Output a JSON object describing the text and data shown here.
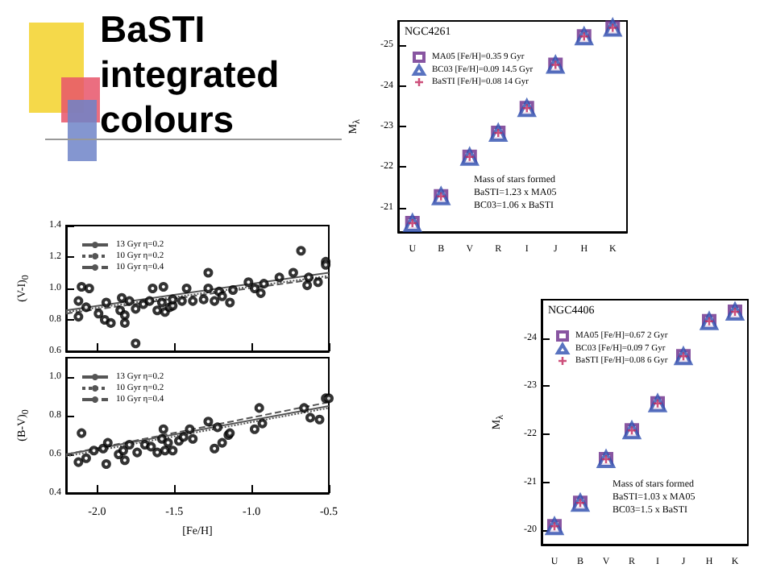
{
  "chart_data": [
    {
      "type": "other",
      "title": "BaSTI integrated colours"
    },
    {
      "type": "scatter",
      "ylabel": "(V-I)$_{0}$",
      "xlim": [
        -2.2,
        -0.5
      ],
      "xticks": [
        -2,
        -1.5,
        -1,
        -0.5
      ],
      "ylim": [
        0.6,
        1.4
      ],
      "yticks": [
        {
          "value": 0.6,
          "label": "0.6"
        },
        {
          "value": 0.8,
          "label": "0.8"
        },
        {
          "value": 1,
          "label": "1.0"
        },
        {
          "value": 1.2,
          "label": "1.2"
        },
        {
          "value": 1.4,
          "label": "1.4"
        }
      ],
      "tick_labels": "y",
      "legend": "top left",
      "series": [
        {
          "type": "scatter",
          "color": "#000000",
          "marker": "circle",
          "x": [
            -2.12,
            -2.12,
            -2.1,
            -2.05,
            -2.07,
            -1.99,
            -1.95,
            -1.91,
            -1.94,
            -1.85,
            -1.84,
            -1.82,
            -1.82,
            -1.79,
            -1.75,
            -1.75,
            -1.7,
            -1.66,
            -1.64,
            -1.61,
            -1.58,
            -1.57,
            -1.56,
            -1.53,
            -1.51,
            -1.51,
            -1.45,
            -1.42,
            -1.38,
            -1.31,
            -1.28,
            -1.28,
            -1.24,
            -1.21,
            -1.19,
            -1.14,
            -1.12,
            -1.02,
            -0.98,
            -0.94,
            -0.92,
            -0.82,
            -0.73,
            -0.68,
            -0.64,
            -0.57,
            -0.52,
            -0.52,
            -0.63
          ],
          "values": [
            0.82,
            0.92,
            1.01,
            1.0,
            0.88,
            0.84,
            0.8,
            0.78,
            0.91,
            0.86,
            0.94,
            0.83,
            0.78,
            0.92,
            0.65,
            0.87,
            0.9,
            0.92,
            1.0,
            0.86,
            0.91,
            1.01,
            0.85,
            0.88,
            0.89,
            0.93,
            0.92,
            1.0,
            0.92,
            0.93,
            1.1,
            1.0,
            0.92,
            0.98,
            0.95,
            0.91,
            0.99,
            1.04,
            1.0,
            0.97,
            1.03,
            1.07,
            1.1,
            1.24,
            1.02,
            1.04,
            1.17,
            1.15,
            1.07
          ]
        },
        {
          "type": "line",
          "name": "13 Gyr η=0.2",
          "color": "#555555",
          "line_style": "solid",
          "x": [
            -2.2,
            -0.5
          ],
          "values": [
            0.86,
            1.1
          ]
        },
        {
          "type": "line",
          "name": "10 Gyr η=0.2",
          "color": "#555555",
          "line_style": "dotted",
          "x": [
            -2.2,
            -0.5
          ],
          "values": [
            0.85,
            1.08
          ]
        },
        {
          "type": "line",
          "name": "10 Gyr η=0.4",
          "color": "#555555",
          "line_style": "dashed",
          "x": [
            -2.2,
            -0.5
          ],
          "values": [
            0.84,
            1.07
          ]
        }
      ]
    },
    {
      "type": "scatter",
      "xlabel": "[Fe/H]",
      "ylabel": "(B-V)$_{0}$",
      "xlim": [
        -2.2,
        -0.5
      ],
      "xticks": [
        {
          "value": -2,
          "label": "-2.0"
        },
        {
          "value": -1.5,
          "label": "-1.5"
        },
        {
          "value": -1,
          "label": "-1.0"
        },
        {
          "value": -0.5,
          "label": "-0.5"
        }
      ],
      "ylim": [
        0.4,
        1.1
      ],
      "yticks": [
        {
          "value": 0.4,
          "label": "0.4"
        },
        {
          "value": 0.6,
          "label": "0.6"
        },
        {
          "value": 0.8,
          "label": "0.8"
        },
        {
          "value": 1,
          "label": "1.0"
        }
      ],
      "legend": "top left",
      "series": [
        {
          "type": "scatter",
          "color": "#000000",
          "marker": "circle",
          "x": [
            -2.12,
            -2.1,
            -2.07,
            -2.02,
            -1.96,
            -1.94,
            -1.93,
            -1.86,
            -1.83,
            -1.82,
            -1.79,
            -1.74,
            -1.69,
            -1.65,
            -1.61,
            -1.58,
            -1.57,
            -1.56,
            -1.54,
            -1.51,
            -1.47,
            -1.44,
            -1.4,
            -1.38,
            -1.28,
            -1.24,
            -1.22,
            -1.19,
            -1.15,
            -1.14,
            -0.98,
            -0.95,
            -0.93,
            -0.66,
            -0.62,
            -0.56,
            -0.52,
            -0.5
          ],
          "values": [
            0.56,
            0.71,
            0.58,
            0.62,
            0.63,
            0.55,
            0.66,
            0.6,
            0.62,
            0.57,
            0.65,
            0.61,
            0.65,
            0.64,
            0.61,
            0.68,
            0.73,
            0.62,
            0.66,
            0.62,
            0.67,
            0.69,
            0.73,
            0.68,
            0.77,
            0.63,
            0.74,
            0.66,
            0.7,
            0.71,
            0.73,
            0.84,
            0.76,
            0.84,
            0.79,
            0.78,
            0.89,
            0.89
          ]
        },
        {
          "type": "line",
          "name": "13 Gyr η=0.2",
          "color": "#555555",
          "line_style": "solid",
          "x": [
            -2.2,
            -0.5
          ],
          "values": [
            0.6,
            0.85
          ]
        },
        {
          "type": "line",
          "name": "10 Gyr η=0.2",
          "color": "#555555",
          "line_style": "dotted",
          "x": [
            -2.2,
            -0.5
          ],
          "values": [
            0.59,
            0.84
          ]
        },
        {
          "type": "line",
          "name": "10 Gyr η=0.4",
          "color": "#555555",
          "line_style": "dashed",
          "x": [
            -2.2,
            -0.5
          ],
          "values": [
            0.6,
            0.87
          ]
        }
      ]
    },
    {
      "type": "scatter",
      "title": "NGC4261",
      "ylabel": "M$_{λ}$",
      "categories": [
        "U",
        "B",
        "V",
        "R",
        "I",
        "J",
        "H",
        "K"
      ],
      "ylim": [
        -20.4,
        -25.6
      ],
      "yticks": [
        -21,
        -22,
        -23,
        -24,
        -25
      ],
      "legend": "top left",
      "annotations": [
        "Mass of stars formed",
        "BaSTI=1.23 x MA05",
        "BC03=1.06 x BaSTI"
      ],
      "series": [
        {
          "name": "MA05 [Fe/H]=0.35 9 Gyr",
          "color": "#6a2a8a",
          "marker": "square",
          "values": [
            -20.62,
            -21.28,
            -22.25,
            -22.84,
            -23.45,
            -24.52,
            -25.22,
            -25.43
          ]
        },
        {
          "name": "BC03 [Fe/H]=0.09 14.5 Gyr",
          "color": "#3050b0",
          "marker": "triangle",
          "values": [
            -20.62,
            -21.28,
            -22.25,
            -22.84,
            -23.45,
            -24.52,
            -25.22,
            -25.43
          ]
        },
        {
          "name": "BaSTI [Fe/H]=0.08 14 Gyr",
          "color": "#c0245a",
          "marker": "cross",
          "values": [
            -20.62,
            -21.28,
            -22.25,
            -22.84,
            -23.45,
            -24.52,
            -25.22,
            -25.43
          ]
        }
      ]
    },
    {
      "type": "scatter",
      "title": "NGC4406",
      "ylabel": "M$_{λ}$",
      "categories": [
        "U",
        "B",
        "V",
        "R",
        "I",
        "J",
        "H",
        "K"
      ],
      "ylim": [
        -19.7,
        -24.8
      ],
      "yticks": [
        -20,
        -21,
        -22,
        -23,
        -24
      ],
      "legend": "top left",
      "annotations": [
        "Mass of stars formed",
        "BaSTI=1.03 x MA05",
        "BC03=1.5 x BaSTI"
      ],
      "series": [
        {
          "name": "MA05 [Fe/H]=0.67 2 Gyr",
          "color": "#6a2a8a",
          "marker": "square",
          "values": [
            -20.08,
            -20.57,
            -21.48,
            -22.08,
            -22.64,
            -23.62,
            -24.35,
            -24.55
          ]
        },
        {
          "name": "BC03 [Fe/H]=0.09 7 Gyr",
          "color": "#3050b0",
          "marker": "triangle",
          "values": [
            -20.08,
            -20.57,
            -21.48,
            -22.08,
            -22.64,
            -23.62,
            -24.35,
            -24.55
          ]
        },
        {
          "name": "BaSTI [Fe/H]=0.08 6 Gyr",
          "color": "#c0245a",
          "marker": "cross",
          "values": [
            -20.08,
            -20.57,
            -21.48,
            -22.08,
            -22.64,
            -23.62,
            -24.35,
            -24.55
          ]
        }
      ]
    }
  ]
}
